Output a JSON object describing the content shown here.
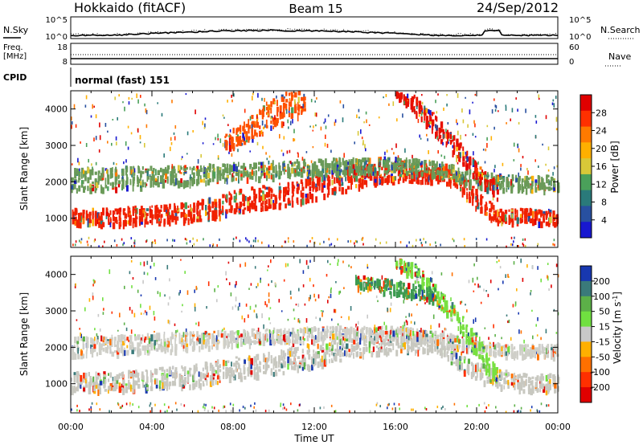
{
  "header": {
    "station": "Hokkaido (fitACF)",
    "beam": "Beam 15",
    "date": "24/Sep/2012"
  },
  "top_panels": {
    "nsky_label": "N.Sky",
    "nsky_scale_top": "10^5",
    "nsky_scale_bottom": "10^0",
    "nsearch_label": "N.Search",
    "nsearch_scale_top": "10^5",
    "nsearch_scale_bottom": "10^0",
    "freq_label_1": "Freq.",
    "freq_label_2": "[MHz]",
    "freq_tick_top": "18",
    "freq_tick_bottom": "8",
    "nave_label": "Nave",
    "nave_tick_top": "60",
    "nave_tick_bottom": "0",
    "cpid_label": "CPID",
    "cpid_text": "normal (fast) 151"
  },
  "chart_data": [
    {
      "type": "heatmap",
      "name": "Power",
      "ylabel": "Slant Range [km]",
      "ylim": [
        200,
        4500
      ],
      "xlim": [
        0,
        24
      ],
      "yticks": [
        "1000",
        "2000",
        "3000",
        "4000"
      ],
      "colorbar_label": "Power [dB]",
      "colorbar_ticks": [
        "28",
        "24",
        "20",
        "16",
        "12",
        "8",
        "4"
      ],
      "colorbar_colors": [
        "#e00000",
        "#ff3000",
        "#ff7a00",
        "#ffb000",
        "#d8c838",
        "#4aa05a",
        "#2a7a7a",
        "#2850a0",
        "#1818d0"
      ],
      "bands": [
        {
          "x": [
            0,
            2,
            4,
            6,
            7,
            8,
            9,
            10,
            11,
            12,
            13,
            14,
            15,
            16,
            17,
            18,
            19,
            20,
            21,
            22,
            24
          ],
          "lo": [
            850,
            850,
            900,
            950,
            1000,
            1200,
            1250,
            1350,
            1450,
            1550,
            1700,
            1900,
            2000,
            2000,
            2050,
            2050,
            1900,
            1300,
            900,
            900,
            900
          ],
          "hi": [
            1300,
            1300,
            1400,
            1500,
            1600,
            1800,
            1900,
            1950,
            2050,
            2200,
            2350,
            2500,
            2550,
            2600,
            2500,
            2450,
            2350,
            1800,
            1300,
            1300,
            1250
          ],
          "color": "#f02000"
        },
        {
          "x": [
            0,
            2,
            4,
            6,
            8,
            10,
            12,
            14,
            16,
            18,
            20,
            22,
            24
          ],
          "lo": [
            1800,
            1850,
            1900,
            2000,
            2100,
            2150,
            2200,
            2300,
            2300,
            2200,
            1900,
            1800,
            1800
          ],
          "hi": [
            2400,
            2450,
            2450,
            2500,
            2550,
            2600,
            2650,
            2700,
            2700,
            2600,
            2300,
            2200,
            2200
          ],
          "color": "#6a9a58"
        },
        {
          "x": [
            7.5,
            8.5,
            9.5,
            10.5,
            11.5
          ],
          "lo": [
            2800,
            3100,
            3400,
            3700,
            3900
          ],
          "hi": [
            3300,
            3700,
            4200,
            4500,
            4500
          ],
          "color": "#ff5000"
        },
        {
          "x": [
            16,
            17,
            18,
            19,
            20,
            21
          ],
          "lo": [
            4400,
            3900,
            3300,
            2700,
            2100,
            1500
          ],
          "hi": [
            4500,
            4400,
            3800,
            3200,
            2600,
            2000
          ],
          "color": "#e81000"
        }
      ]
    },
    {
      "type": "heatmap",
      "name": "Velocity",
      "ylabel": "Slant Range [km]",
      "ylim": [
        200,
        4500
      ],
      "xlim": [
        0,
        24
      ],
      "yticks": [
        "1000",
        "2000",
        "3000",
        "4000"
      ],
      "colorbar_label": "Velocity [m s^-1]",
      "colorbar_ticks": [
        "200",
        "100",
        "50",
        "15",
        "-15",
        "-50",
        "-100",
        "-200"
      ],
      "colorbar_colors": [
        "#1838b0",
        "#3a7a7a",
        "#5cb048",
        "#70e040",
        "#c8c8c8",
        "#ffb000",
        "#ff7000",
        "#ff3000",
        "#e00000"
      ],
      "bands": [
        {
          "x": [
            0,
            2,
            4,
            6,
            8,
            10,
            12,
            14,
            16,
            18,
            20,
            22,
            24
          ],
          "lo": [
            850,
            850,
            900,
            950,
            1150,
            1300,
            1500,
            1800,
            1900,
            1900,
            1100,
            850,
            850
          ],
          "hi": [
            1350,
            1350,
            1450,
            1550,
            1750,
            1950,
            2150,
            2350,
            2400,
            2350,
            1600,
            1300,
            1300
          ],
          "color": "#c8c8c0"
        },
        {
          "x": [
            0,
            2,
            4,
            6,
            8,
            10,
            12,
            14,
            16,
            18,
            20,
            22,
            24
          ],
          "lo": [
            1800,
            1850,
            1900,
            2000,
            2100,
            2150,
            2200,
            2300,
            2300,
            2200,
            1900,
            1800,
            1800
          ],
          "hi": [
            2300,
            2350,
            2400,
            2450,
            2500,
            2550,
            2600,
            2600,
            2600,
            2500,
            2200,
            2100,
            2100
          ],
          "color": "#cfcfc8"
        },
        {
          "x": [
            16,
            17,
            18,
            19,
            20,
            21
          ],
          "lo": [
            4300,
            3800,
            3200,
            2600,
            1800,
            900
          ],
          "hi": [
            4500,
            4300,
            3700,
            3100,
            2400,
            1400
          ],
          "color": "#78e040"
        },
        {
          "x": [
            14,
            15,
            16,
            17,
            18
          ],
          "lo": [
            3700,
            3600,
            3500,
            3400,
            3300
          ],
          "hi": [
            4000,
            3950,
            3850,
            3750,
            3650
          ],
          "color": "#3c9a50"
        }
      ]
    }
  ],
  "time_axis": {
    "xlabel": "Time UT",
    "ticks": [
      "00:00",
      "04:00",
      "08:00",
      "12:00",
      "16:00",
      "20:00",
      "00:00"
    ]
  }
}
